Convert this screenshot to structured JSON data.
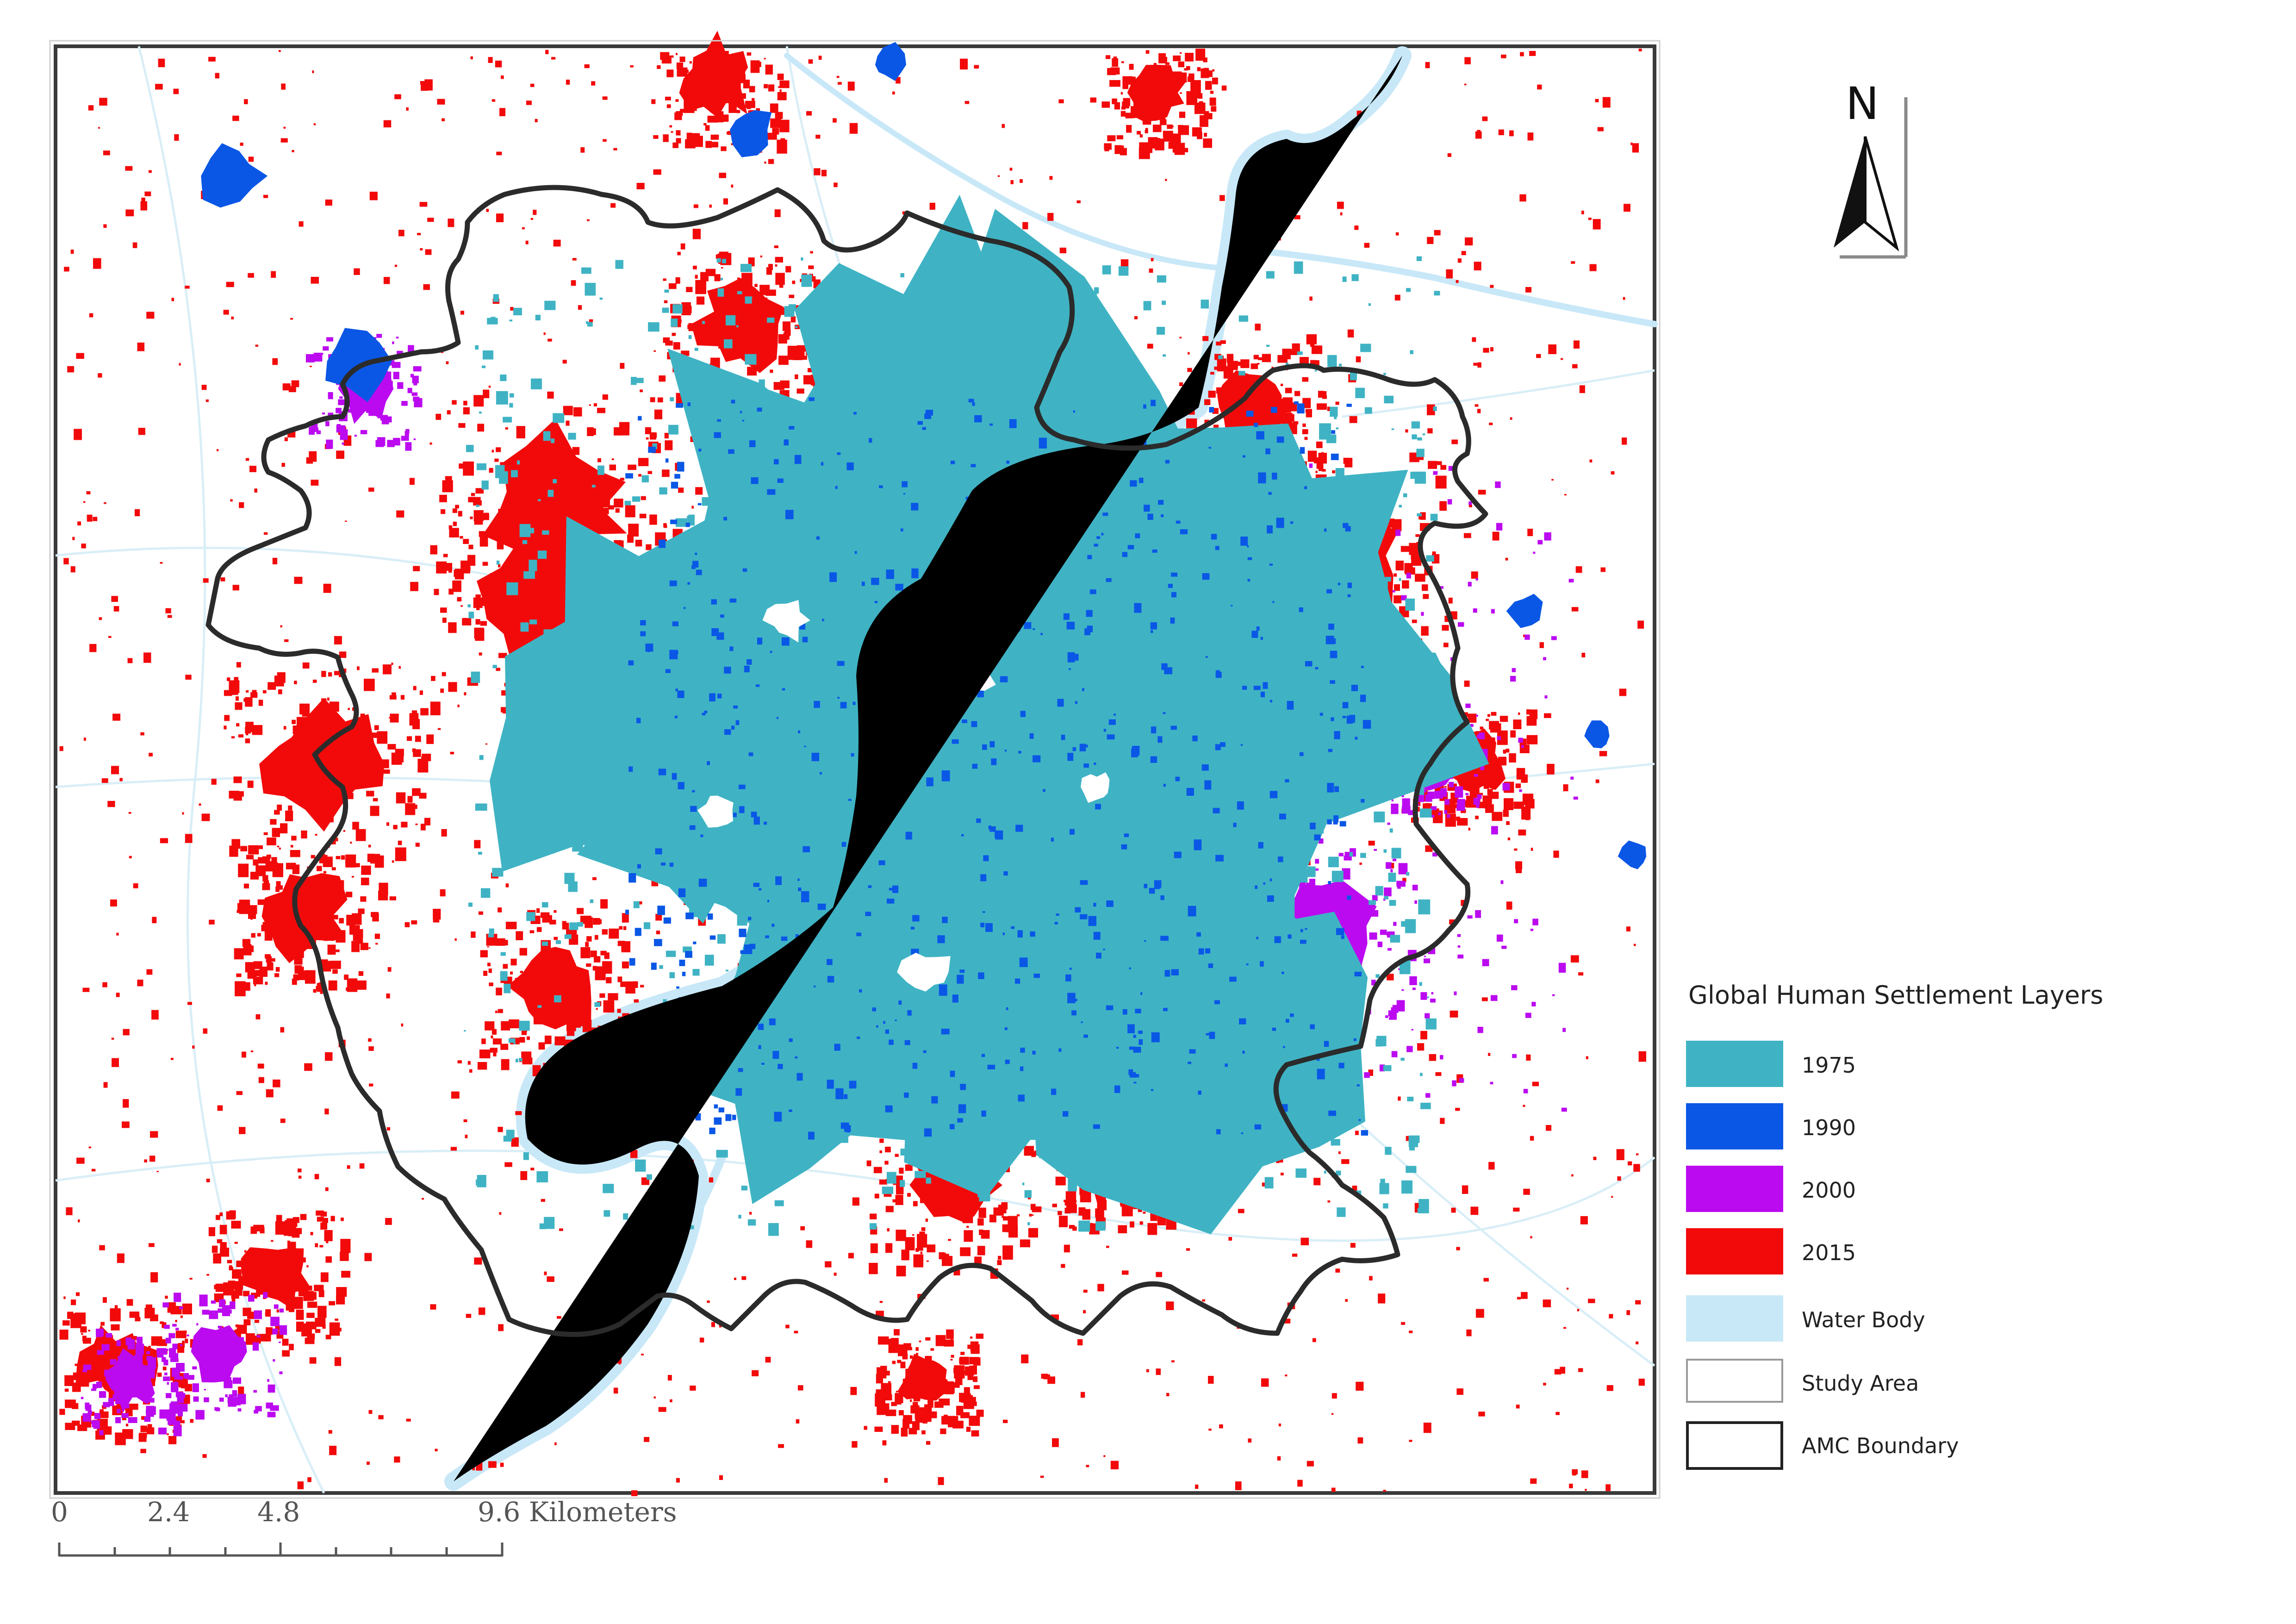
{
  "legend": {
    "title": "Global Human Settlement Layers",
    "items": [
      {
        "label": "1975",
        "color": "#3fb3c4",
        "style": "fill"
      },
      {
        "label": "1990",
        "color": "#0a57e6",
        "style": "fill"
      },
      {
        "label": "2000",
        "color": "#bb0af0",
        "style": "fill"
      },
      {
        "label": "2015",
        "color": "#f20a0a",
        "style": "fill"
      },
      {
        "label": "Water Body",
        "color": "#c8e8f8",
        "style": "fill"
      },
      {
        "label": "Study Area",
        "color": "#9a9a9a",
        "style": "outline-thin"
      },
      {
        "label": "AMC Boundary",
        "color": "#222222",
        "style": "outline-thick"
      }
    ]
  },
  "north_arrow": {
    "label": "N"
  },
  "scale_bar": {
    "ticks": [
      {
        "label": "0",
        "value": 0
      },
      {
        "label": "2.4",
        "value": 2.4
      },
      {
        "label": "4.8",
        "value": 4.8
      },
      {
        "label": "9.6 Kilometers",
        "value": 9.6
      }
    ],
    "unit": "Kilometers"
  },
  "colors": {
    "settlement_1975": "#3fb3c4",
    "settlement_1990": "#0a57e6",
    "settlement_2000": "#bb0af0",
    "settlement_2015": "#f20a0a",
    "water": "#c8e8f8",
    "boundary": "#2b2b2b",
    "frame": "#3a3a3a"
  }
}
